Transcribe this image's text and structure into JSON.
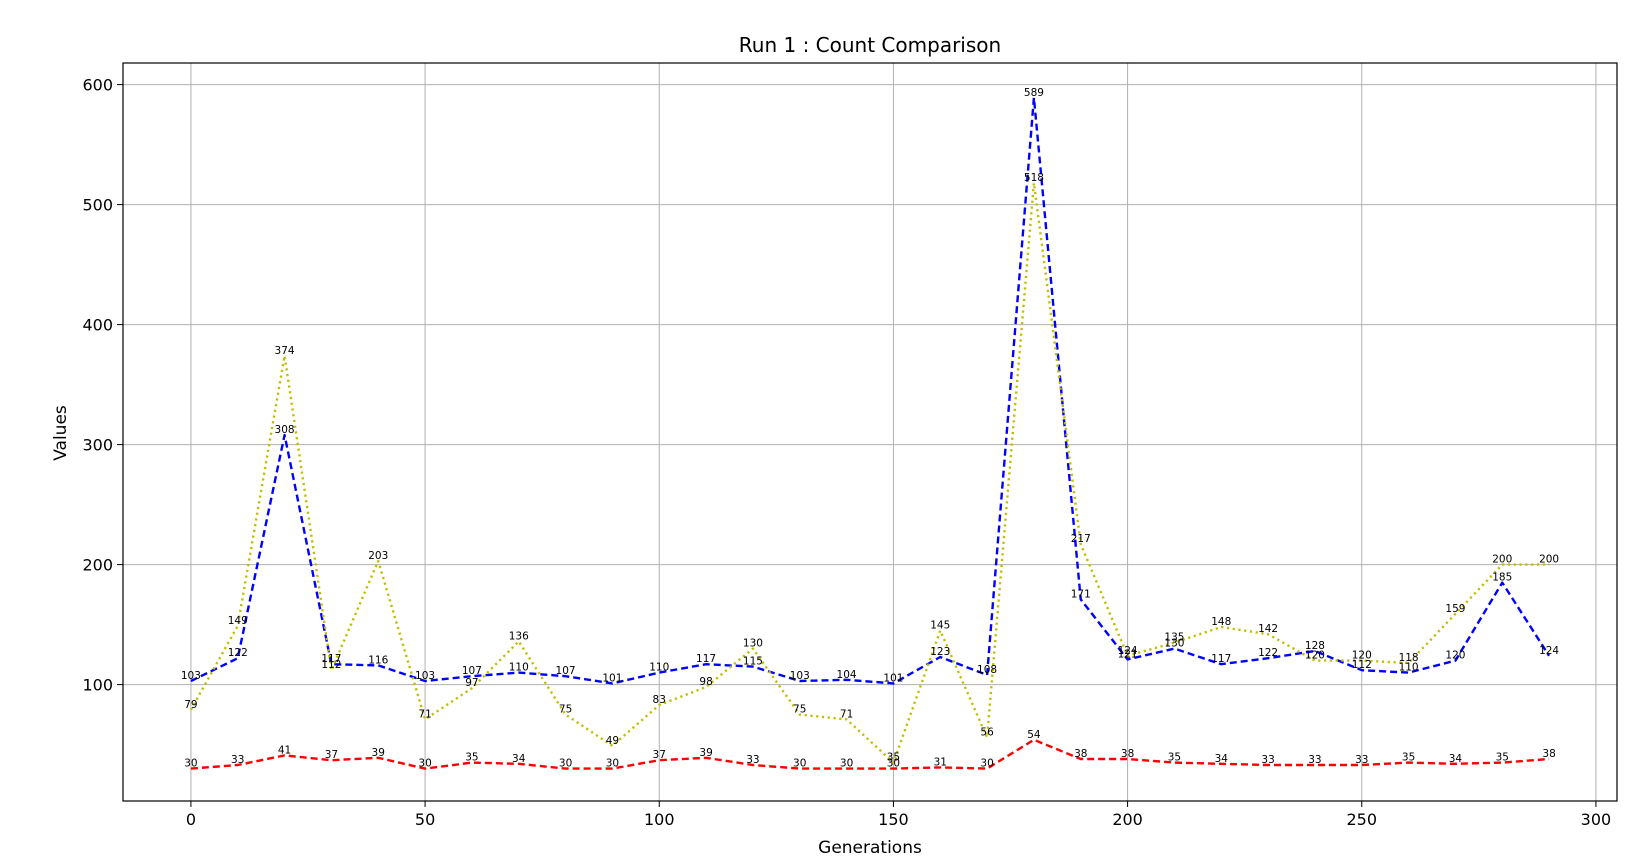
{
  "chart_data": {
    "type": "line",
    "title": "Run 1 : Count Comparison",
    "xlabel": "Generations",
    "ylabel": "Values",
    "xlim": [
      -14.5,
      304.5
    ],
    "ylim": [
      3,
      618
    ],
    "xticks": [
      0,
      50,
      100,
      150,
      200,
      250,
      300
    ],
    "yticks": [
      100,
      200,
      300,
      400,
      500,
      600
    ],
    "grid": true,
    "x": [
      0,
      10,
      20,
      30,
      40,
      50,
      60,
      70,
      80,
      90,
      100,
      110,
      120,
      130,
      140,
      150,
      160,
      170,
      180,
      190,
      200,
      210,
      220,
      230,
      240,
      250,
      260,
      270,
      280,
      290
    ],
    "series": [
      {
        "color": "#0000ff",
        "style": "dashed",
        "values": [
          103,
          122,
          308,
          117,
          116,
          103,
          107,
          110,
          107,
          101,
          110,
          117,
          115,
          103,
          104,
          101,
          123,
          108,
          589,
          171,
          121,
          130,
          117,
          122,
          128,
          112,
          110,
          120,
          185,
          124
        ]
      },
      {
        "color": "#bfbf00",
        "style": "dotted",
        "values": [
          79,
          149,
          374,
          112,
          203,
          71,
          97,
          136,
          75,
          49,
          83,
          98,
          130,
          75,
          71,
          35,
          145,
          56,
          518,
          217,
          124,
          135,
          148,
          142,
          120,
          120,
          118,
          159,
          200,
          200
        ]
      },
      {
        "color": "#ff0000",
        "style": "dashed",
        "values": [
          30,
          33,
          41,
          37,
          39,
          30,
          35,
          34,
          30,
          30,
          37,
          39,
          33,
          30,
          30,
          30,
          31,
          30,
          54,
          38,
          38,
          35,
          34,
          33,
          33,
          33,
          35,
          34,
          35,
          38
        ]
      }
    ]
  }
}
